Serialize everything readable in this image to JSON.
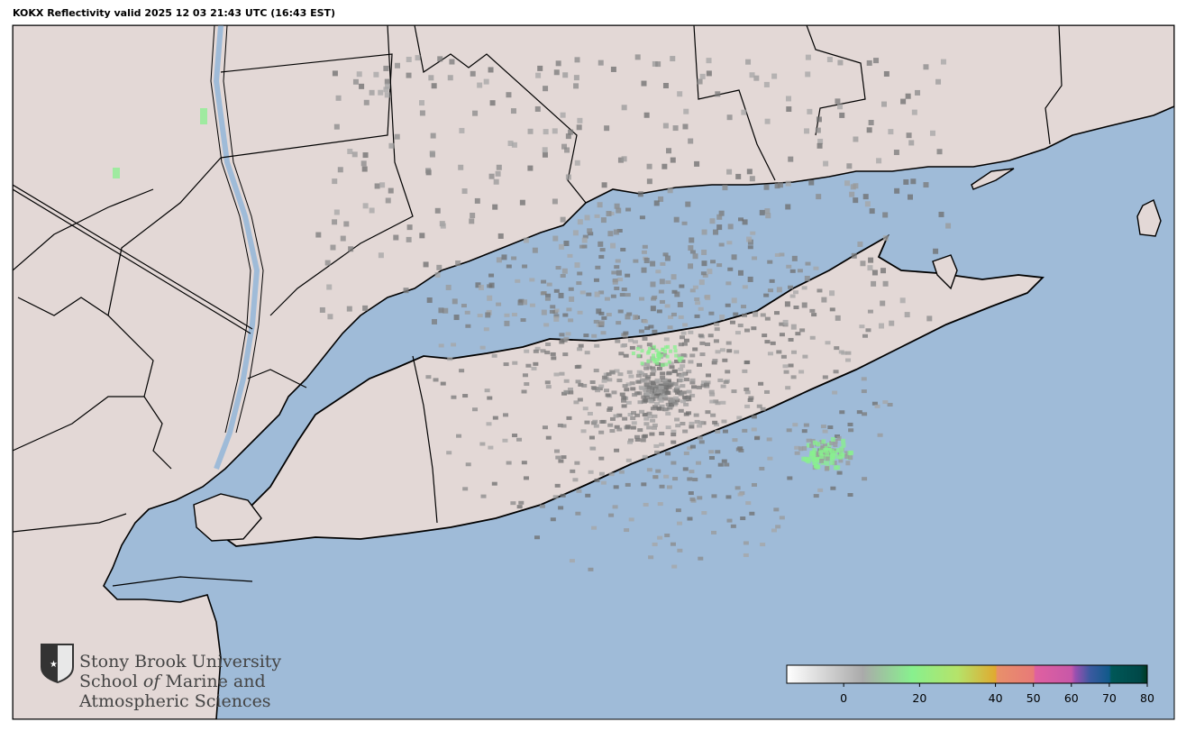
{
  "title": "KOKX Reflectivity valid 2025 12 03 21:43 UTC (16:43 EST)",
  "radar_site": "KOKX",
  "colors": {
    "ocean": "#9fbbd8",
    "land": "#e3d8d6",
    "border": "#000000"
  },
  "colorbar": {
    "range": [
      -15,
      80
    ],
    "ticks": [
      "0",
      "20",
      "40",
      "50",
      "60",
      "70",
      "80"
    ],
    "tick_values": [
      0,
      20,
      40,
      50,
      60,
      70,
      80
    ],
    "stops": [
      {
        "v": -15,
        "c": "#ffffff"
      },
      {
        "v": 5,
        "c": "#aaaaaa"
      },
      {
        "v": 18,
        "c": "#88f08e"
      },
      {
        "v": 30,
        "c": "#b5e36a"
      },
      {
        "v": 40,
        "c": "#e0aa30"
      },
      {
        "v": 40.5,
        "c": "#e8906a"
      },
      {
        "v": 50,
        "c": "#e87a78"
      },
      {
        "v": 50.5,
        "c": "#e060a0"
      },
      {
        "v": 60,
        "c": "#c858a8"
      },
      {
        "v": 61,
        "c": "#9a50b0"
      },
      {
        "v": 65,
        "c": "#3a5aa0"
      },
      {
        "v": 70,
        "c": "#105a8a"
      },
      {
        "v": 70.5,
        "c": "#005858"
      },
      {
        "v": 78,
        "c": "#004848"
      },
      {
        "v": 80,
        "c": "#003a20"
      }
    ]
  },
  "logo": {
    "line1": "Stony Brook University",
    "line2_a": "School ",
    "line2_b": "of",
    "line2_c": " Marine and",
    "line3": "Atmospheric Sciences"
  }
}
